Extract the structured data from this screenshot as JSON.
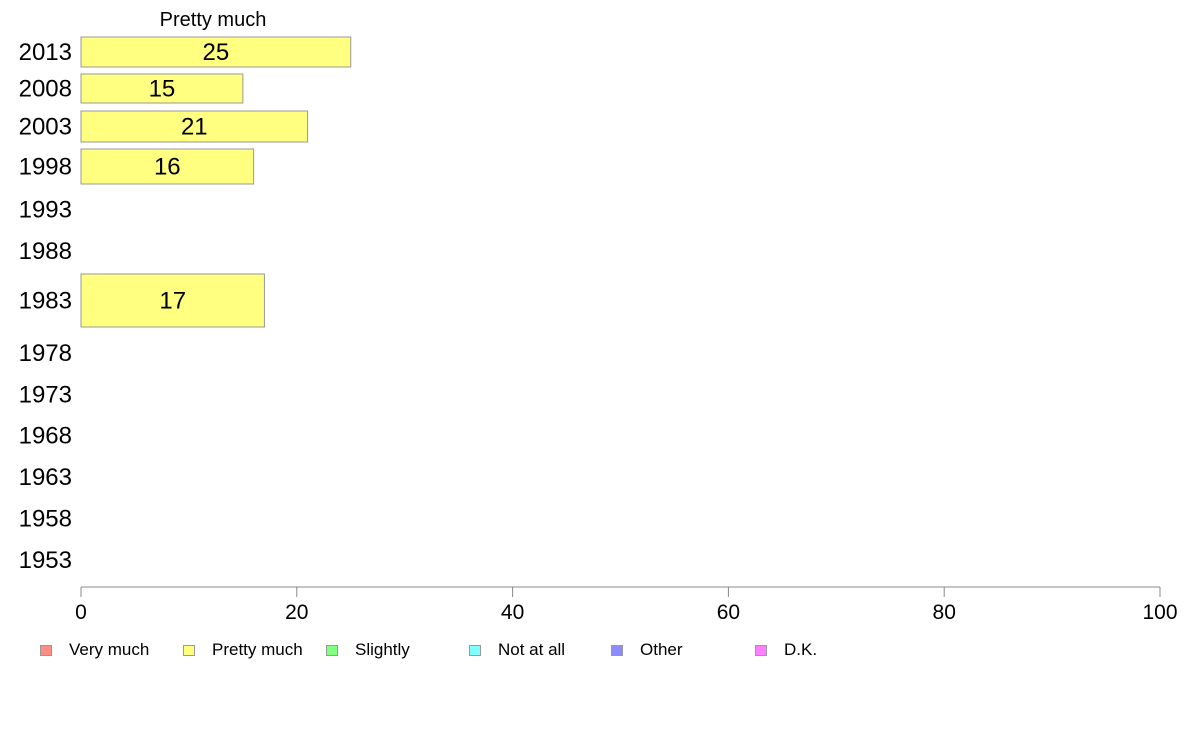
{
  "chart_data": {
    "type": "bar",
    "orientation": "horizontal",
    "title": "Pretty much",
    "categories": [
      "2013",
      "2008",
      "2003",
      "1998",
      "1993",
      "1988",
      "1983",
      "1978",
      "1973",
      "1968",
      "1963",
      "1958",
      "1953"
    ],
    "series": [
      {
        "name": "Pretty much",
        "color": "#ffff80",
        "values": [
          25,
          15,
          21,
          16,
          null,
          null,
          17,
          null,
          null,
          null,
          null,
          null,
          null
        ]
      }
    ],
    "xlim": [
      0,
      100
    ],
    "xticks": [
      0,
      20,
      40,
      60,
      80,
      100
    ],
    "xlabel": "",
    "ylabel": "",
    "grid": false,
    "legend_position": "bottom"
  },
  "legend": [
    {
      "label": "Very much",
      "color": "#ff8c80"
    },
    {
      "label": "Pretty much",
      "color": "#ffff80"
    },
    {
      "label": "Slightly",
      "color": "#80ff80"
    },
    {
      "label": "Not at all",
      "color": "#80ffff"
    },
    {
      "label": "Other",
      "color": "#8c8cff"
    },
    {
      "label": "D.K.",
      "color": "#ff80ff"
    }
  ]
}
